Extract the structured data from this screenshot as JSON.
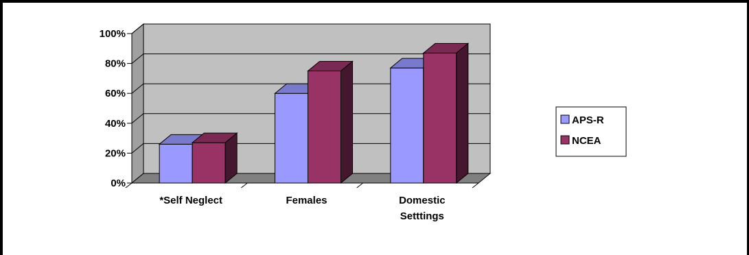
{
  "chart_data": {
    "type": "bar",
    "title": "",
    "categories": [
      "*Self Neglect",
      "Females",
      "Domestic Setttings"
    ],
    "series": [
      {
        "name": "APS-R",
        "values": [
          26,
          60,
          77
        ],
        "color": "#9999ff"
      },
      {
        "name": "NCEA",
        "values": [
          27,
          75,
          87
        ],
        "color": "#993366"
      }
    ],
    "ylim": [
      0,
      100
    ],
    "yticks": [
      "0%",
      "20%",
      "40%",
      "60%",
      "80%",
      "100%"
    ],
    "xlabel": "",
    "ylabel": "",
    "grid": true,
    "legend": "right",
    "plot_background": "#c0c0c0"
  }
}
